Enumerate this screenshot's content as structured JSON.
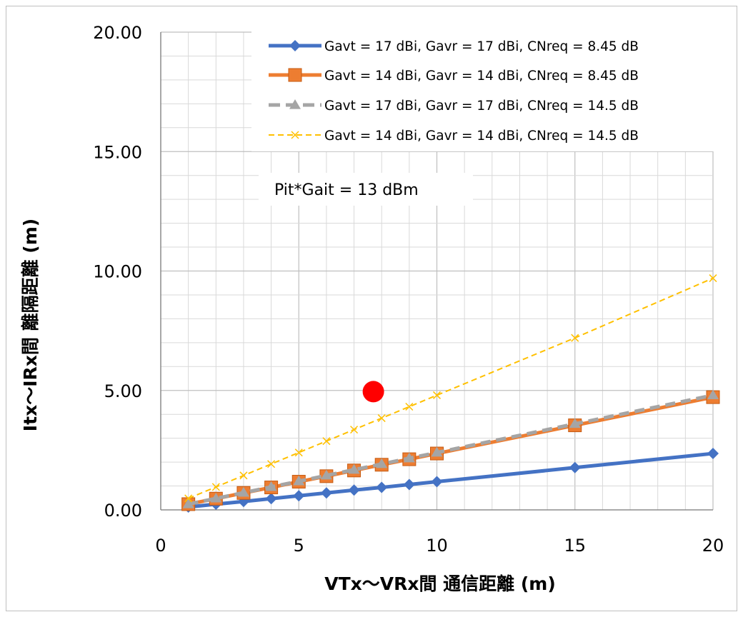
{
  "chart_data": {
    "type": "line",
    "title": "",
    "xlabel": "VTx～VRx間 通信距離 (m)",
    "ylabel": "Itx～IRx間 離隔距離 (m)",
    "xlim": [
      0,
      20
    ],
    "ylim": [
      0,
      20
    ],
    "x_ticks": [
      "0",
      "5",
      "10",
      "15",
      "20"
    ],
    "y_ticks": [
      "0.00",
      "5.00",
      "10.00",
      "15.00",
      "20.00"
    ],
    "grid": true,
    "legend_position": "top-right",
    "annotation": "Pit*Gait = 13 dBm",
    "x": [
      1,
      2,
      3,
      4,
      5,
      6,
      7,
      8,
      9,
      10,
      15,
      20
    ],
    "series": [
      {
        "name": "Gavt = 17 dBi, Gavr = 17 dBi, CNreq = 8.45 dB",
        "color": "#4472C4",
        "marker": "diamond",
        "values": [
          0.12,
          0.24,
          0.35,
          0.47,
          0.59,
          0.71,
          0.83,
          0.94,
          1.06,
          1.18,
          1.77,
          2.36
        ]
      },
      {
        "name": "Gavt = 14 dBi, Gavr = 14 dBi, CNreq = 8.45 dB",
        "color": "#ED7D31",
        "marker": "square",
        "values": [
          0.24,
          0.47,
          0.71,
          0.94,
          1.18,
          1.41,
          1.65,
          1.89,
          2.12,
          2.36,
          3.54,
          4.72
        ]
      },
      {
        "name": "Gavt = 17 dBi, Gavr = 17 dBi, CNreq = 14.5 dB",
        "color": "#A5A5A5",
        "marker": "triangle",
        "dashed": true,
        "values": [
          0.24,
          0.48,
          0.72,
          0.96,
          1.2,
          1.44,
          1.68,
          1.92,
          2.16,
          2.4,
          3.6,
          4.8
        ]
      },
      {
        "name": "Gavt = 14 dBi, Gavr = 14 dBi, CNreq = 14.5 dB",
        "color": "#FFC000",
        "marker": "x",
        "dashed": true,
        "values": [
          0.48,
          0.96,
          1.44,
          1.92,
          2.4,
          2.88,
          3.36,
          3.84,
          4.32,
          4.8,
          7.2,
          9.7
        ]
      }
    ],
    "highlight_point": {
      "x": 7.7,
      "y": 4.95,
      "color": "#FF0000"
    }
  }
}
